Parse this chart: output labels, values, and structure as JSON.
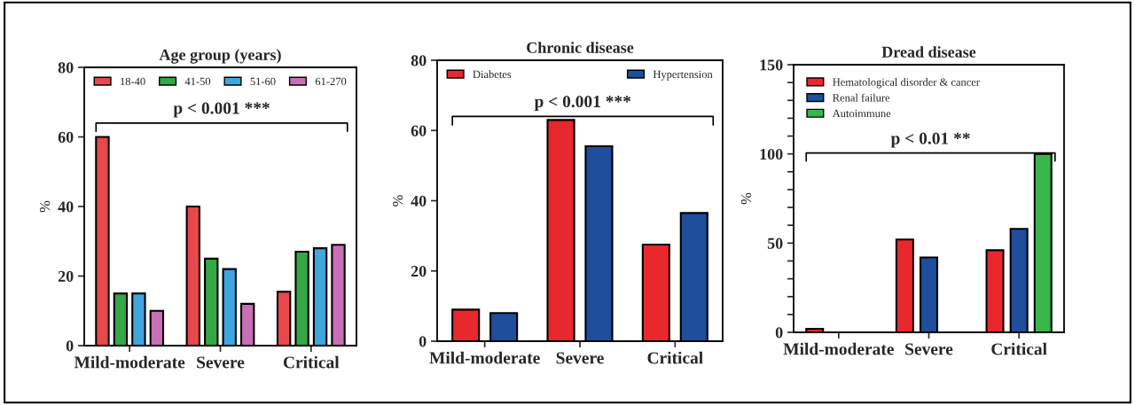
{
  "chart_data": [
    {
      "type": "bar",
      "title": "Age group (years)",
      "ylabel": "%",
      "categories": [
        "Mild-moderate",
        "Severe",
        "Critical"
      ],
      "series": [
        {
          "name": "18-40",
          "color": "#e8474c",
          "values": [
            60,
            40,
            15.5
          ]
        },
        {
          "name": "41-50",
          "color": "#33a845",
          "values": [
            15,
            25,
            27
          ]
        },
        {
          "name": "51-60",
          "color": "#3fa6e0",
          "values": [
            15,
            22,
            28
          ]
        },
        {
          "name": "61-270",
          "color": "#c86fb6",
          "values": [
            10,
            12,
            29
          ]
        }
      ],
      "ylim": [
        0,
        80
      ],
      "yticks": [
        0,
        20,
        40,
        60,
        80
      ],
      "legend": "top",
      "grid": false,
      "annotations": [
        "p < 0.001 ***"
      ]
    },
    {
      "type": "bar",
      "title": "Chronic disease",
      "ylabel": "%",
      "categories": [
        "Mild-moderate",
        "Severe",
        "Critical"
      ],
      "series": [
        {
          "name": "Diabetes",
          "color": "#e8282c",
          "values": [
            9,
            63,
            27.5
          ]
        },
        {
          "name": "Hypertension",
          "color": "#1f4e9c",
          "values": [
            8,
            55.5,
            36.5
          ]
        }
      ],
      "ylim": [
        0,
        80
      ],
      "yticks": [
        0,
        20,
        40,
        60,
        80
      ],
      "legend": "top",
      "grid": false,
      "annotations": [
        "p < 0.001 ***"
      ]
    },
    {
      "type": "bar",
      "title": "Dread disease",
      "ylabel": "%",
      "categories": [
        "Mild-moderate",
        "Severe",
        "Critical"
      ],
      "series": [
        {
          "name": "Hematological disorder & cancer",
          "color": "#e8282c",
          "values": [
            2,
            52,
            46
          ]
        },
        {
          "name": "Renal failure",
          "color": "#1f4e9c",
          "values": [
            null,
            42,
            58
          ]
        },
        {
          "name": "Autoimmune",
          "color": "#3ab54a",
          "values": [
            null,
            null,
            100
          ]
        }
      ],
      "ylim": [
        0,
        150
      ],
      "yticks": [
        0,
        {
          "value": 10,
          "label": null
        },
        {
          "value": 20,
          "label": null
        },
        {
          "value": 30,
          "label": null
        },
        {
          "value": 40,
          "label": null
        },
        50,
        {
          "value": 60,
          "label": null
        },
        {
          "value": 70,
          "label": null
        },
        {
          "value": 80,
          "label": null
        },
        {
          "value": 90,
          "label": null
        },
        100,
        {
          "value": 110,
          "label": null
        },
        {
          "value": 120,
          "label": null
        },
        {
          "value": 130,
          "label": null
        },
        {
          "value": 140,
          "label": null
        },
        150
      ],
      "legend": "top left",
      "grid": false,
      "annotations": [
        "p < 0.01 **"
      ]
    }
  ]
}
